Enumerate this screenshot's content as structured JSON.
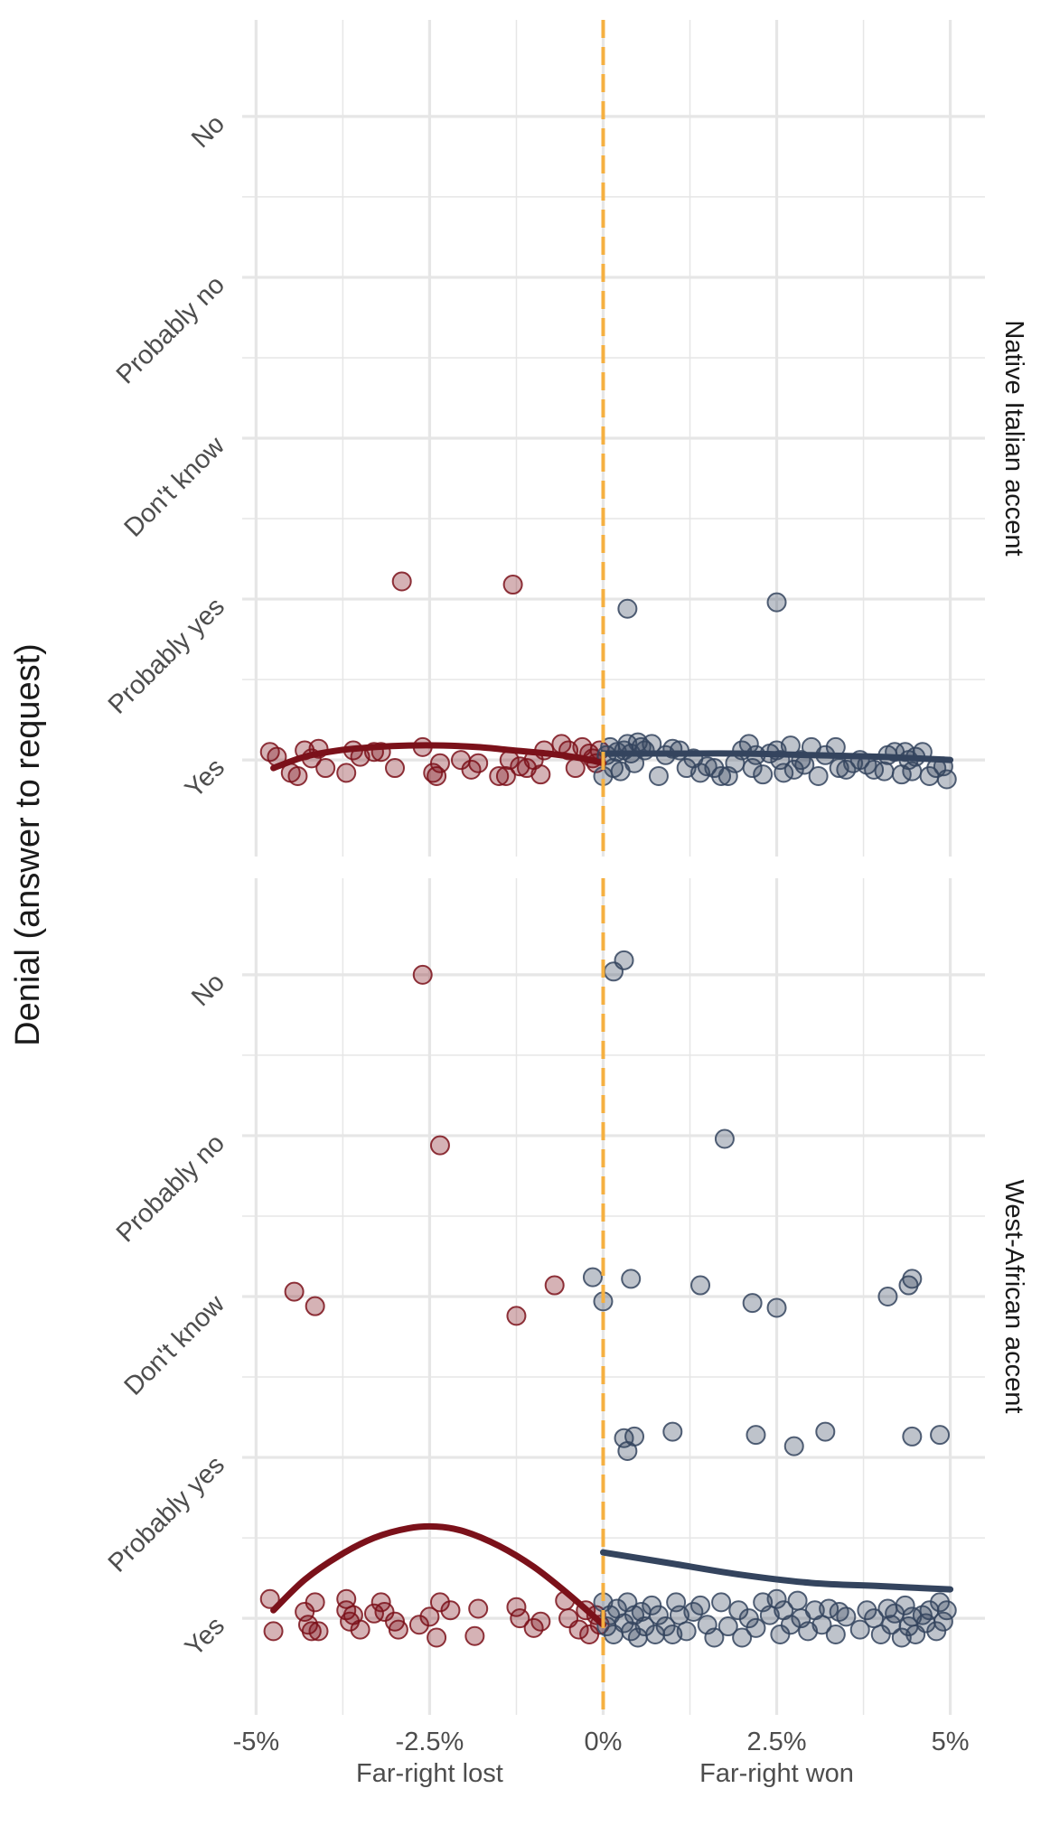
{
  "chart_data": {
    "type": "scatter",
    "ylabel": "Denial (answer to request)",
    "y_categories": [
      "Yes",
      "Probably yes",
      "Don't know",
      "Probably no",
      "No"
    ],
    "x_ticks": [
      -5,
      -2.5,
      0,
      2.5,
      5
    ],
    "x_tick_labels": [
      "-5%",
      "-2.5%",
      "0%",
      "2.5%",
      "5%"
    ],
    "xlim": [
      -5.2,
      5.5
    ],
    "x_sublabels": [
      {
        "x": -2.5,
        "text": "Far-right lost"
      },
      {
        "x": 2.5,
        "text": "Far-right won"
      }
    ],
    "cutoff": {
      "x": 0,
      "color": "#f5b041",
      "style": "dashed"
    },
    "colors": {
      "lost": "#7b111a",
      "won": "#34445e",
      "grid": "#e6e6e6"
    },
    "grid": true,
    "panels": [
      {
        "name": "Native Italian accent",
        "fits": [
          {
            "side": "lost",
            "points": [
              [
                -4.75,
                -0.05
              ],
              [
                -4.3,
                0.02
              ],
              [
                -3.8,
                0.06
              ],
              [
                -3.3,
                0.08
              ],
              [
                -2.8,
                0.09
              ],
              [
                -2.3,
                0.09
              ],
              [
                -1.8,
                0.08
              ],
              [
                -1.3,
                0.06
              ],
              [
                -0.8,
                0.04
              ],
              [
                -0.3,
                0.01
              ],
              [
                0,
                -0.02
              ]
            ]
          },
          {
            "side": "won",
            "points": [
              [
                0,
                0.04
              ],
              [
                1,
                0.04
              ],
              [
                2,
                0.04
              ],
              [
                3,
                0.03
              ],
              [
                4,
                0.02
              ],
              [
                5,
                0.0
              ]
            ]
          }
        ],
        "points_lost": [
          [
            -4.8,
            0.05
          ],
          [
            -4.7,
            0.02
          ],
          [
            -4.5,
            -0.08
          ],
          [
            -4.4,
            -0.1
          ],
          [
            -4.3,
            0.06
          ],
          [
            -4.2,
            0.01
          ],
          [
            -4.1,
            0.07
          ],
          [
            -4.0,
            -0.05
          ],
          [
            -3.7,
            -0.08
          ],
          [
            -3.6,
            0.06
          ],
          [
            -3.5,
            0.02
          ],
          [
            -3.3,
            0.05
          ],
          [
            -3.2,
            0.05
          ],
          [
            -3.0,
            -0.05
          ],
          [
            -2.6,
            0.08
          ],
          [
            -2.45,
            -0.08
          ],
          [
            -2.4,
            -0.1
          ],
          [
            -2.35,
            -0.02
          ],
          [
            -2.05,
            0.0
          ],
          [
            -1.9,
            -0.06
          ],
          [
            -1.8,
            -0.02
          ],
          [
            -1.5,
            -0.1
          ],
          [
            -1.4,
            -0.1
          ],
          [
            -1.35,
            0.0
          ],
          [
            -1.2,
            -0.04
          ],
          [
            -1.1,
            -0.05
          ],
          [
            -1.0,
            0.0
          ],
          [
            -0.9,
            -0.09
          ],
          [
            -0.85,
            0.06
          ],
          [
            -0.6,
            0.1
          ],
          [
            -0.5,
            0.06
          ],
          [
            -0.4,
            -0.05
          ],
          [
            -0.3,
            0.08
          ],
          [
            -0.2,
            0.04
          ],
          [
            -0.15,
            0.01
          ],
          [
            -0.1,
            -0.02
          ],
          [
            -0.05,
            0.06
          ],
          [
            -2.9,
            1.11
          ],
          [
            -1.3,
            1.09
          ]
        ],
        "points_won": [
          [
            0.0,
            -0.1
          ],
          [
            0.05,
            0.03
          ],
          [
            0.1,
            0.08
          ],
          [
            0.15,
            -0.05
          ],
          [
            0.2,
            0.05
          ],
          [
            0.25,
            -0.07
          ],
          [
            0.3,
            0.06
          ],
          [
            0.35,
            0.1
          ],
          [
            0.4,
            0.04
          ],
          [
            0.45,
            -0.02
          ],
          [
            0.5,
            0.11
          ],
          [
            0.55,
            0.08
          ],
          [
            0.6,
            0.06
          ],
          [
            0.7,
            0.1
          ],
          [
            0.8,
            -0.1
          ],
          [
            0.9,
            0.03
          ],
          [
            1.0,
            0.07
          ],
          [
            1.1,
            0.06
          ],
          [
            1.2,
            -0.05
          ],
          [
            1.3,
            0.01
          ],
          [
            1.4,
            -0.08
          ],
          [
            1.5,
            -0.04
          ],
          [
            1.6,
            -0.05
          ],
          [
            1.7,
            -0.1
          ],
          [
            1.8,
            -0.1
          ],
          [
            1.9,
            -0.02
          ],
          [
            2.0,
            0.06
          ],
          [
            2.1,
            0.1
          ],
          [
            2.15,
            -0.05
          ],
          [
            2.2,
            0.03
          ],
          [
            2.3,
            -0.09
          ],
          [
            2.4,
            0.04
          ],
          [
            2.5,
            0.06
          ],
          [
            2.55,
            0.0
          ],
          [
            2.6,
            -0.08
          ],
          [
            2.7,
            0.09
          ],
          [
            2.75,
            -0.06
          ],
          [
            2.85,
            0.0
          ],
          [
            2.9,
            -0.03
          ],
          [
            3.0,
            0.08
          ],
          [
            3.1,
            -0.1
          ],
          [
            3.2,
            0.03
          ],
          [
            3.35,
            0.08
          ],
          [
            3.4,
            -0.05
          ],
          [
            3.5,
            -0.06
          ],
          [
            3.6,
            -0.02
          ],
          [
            3.7,
            0.0
          ],
          [
            3.8,
            -0.03
          ],
          [
            3.9,
            -0.06
          ],
          [
            4.05,
            -0.07
          ],
          [
            4.1,
            0.03
          ],
          [
            4.2,
            0.05
          ],
          [
            4.3,
            -0.09
          ],
          [
            4.35,
            0.05
          ],
          [
            4.4,
            0.0
          ],
          [
            4.45,
            -0.07
          ],
          [
            4.5,
            0.02
          ],
          [
            4.6,
            0.05
          ],
          [
            4.7,
            -0.1
          ],
          [
            4.8,
            -0.05
          ],
          [
            4.9,
            -0.04
          ],
          [
            4.95,
            -0.12
          ],
          [
            0.35,
            0.94
          ],
          [
            2.5,
            0.98
          ]
        ]
      },
      {
        "name": "West-African accent",
        "fits": [
          {
            "side": "lost",
            "points": [
              [
                -4.75,
                0.05
              ],
              [
                -4.3,
                0.24
              ],
              [
                -3.8,
                0.39
              ],
              [
                -3.3,
                0.5
              ],
              [
                -2.8,
                0.56
              ],
              [
                -2.4,
                0.57
              ],
              [
                -2.0,
                0.54
              ],
              [
                -1.5,
                0.45
              ],
              [
                -1.0,
                0.32
              ],
              [
                -0.5,
                0.15
              ],
              [
                0,
                -0.04
              ]
            ]
          },
          {
            "side": "won",
            "points": [
              [
                0,
                0.41
              ],
              [
                1,
                0.34
              ],
              [
                2,
                0.27
              ],
              [
                3,
                0.22
              ],
              [
                4,
                0.2
              ],
              [
                5,
                0.18
              ]
            ]
          }
        ],
        "points_lost": [
          [
            -4.8,
            0.12
          ],
          [
            -4.75,
            -0.08
          ],
          [
            -4.3,
            0.04
          ],
          [
            -4.25,
            -0.04
          ],
          [
            -4.2,
            -0.08
          ],
          [
            -4.15,
            0.1
          ],
          [
            -4.1,
            -0.08
          ],
          [
            -3.7,
            0.12
          ],
          [
            -3.7,
            0.05
          ],
          [
            -3.65,
            -0.02
          ],
          [
            -3.6,
            0.02
          ],
          [
            -3.5,
            -0.07
          ],
          [
            -3.3,
            0.03
          ],
          [
            -3.2,
            0.1
          ],
          [
            -3.15,
            0.04
          ],
          [
            -3.0,
            -0.02
          ],
          [
            -2.95,
            -0.07
          ],
          [
            -2.65,
            -0.04
          ],
          [
            -2.5,
            0.01
          ],
          [
            -2.4,
            -0.12
          ],
          [
            -2.35,
            0.1
          ],
          [
            -2.2,
            0.05
          ],
          [
            -1.8,
            0.06
          ],
          [
            -1.85,
            -0.11
          ],
          [
            -1.25,
            0.07
          ],
          [
            -1.2,
            0.0
          ],
          [
            -1.0,
            -0.06
          ],
          [
            -0.9,
            -0.02
          ],
          [
            -0.55,
            0.11
          ],
          [
            -0.5,
            0.0
          ],
          [
            -0.35,
            -0.07
          ],
          [
            -0.25,
            0.05
          ],
          [
            -0.2,
            -0.1
          ],
          [
            -0.1,
            0.02
          ],
          [
            -0.05,
            -0.04
          ],
          [
            -2.6,
            4.0
          ],
          [
            -2.35,
            2.94
          ],
          [
            -4.45,
            2.03
          ],
          [
            -4.15,
            1.94
          ],
          [
            -1.25,
            1.88
          ],
          [
            -0.7,
            2.07
          ]
        ],
        "points_won": [
          [
            0.0,
            0.1
          ],
          [
            0.05,
            -0.05
          ],
          [
            0.1,
            0.02
          ],
          [
            0.15,
            -0.1
          ],
          [
            0.2,
            0.06
          ],
          [
            0.3,
            -0.03
          ],
          [
            0.35,
            0.1
          ],
          [
            0.4,
            -0.08
          ],
          [
            0.45,
            0.02
          ],
          [
            0.5,
            -0.12
          ],
          [
            0.55,
            0.04
          ],
          [
            0.6,
            -0.05
          ],
          [
            0.7,
            0.08
          ],
          [
            0.75,
            -0.1
          ],
          [
            0.8,
            0.02
          ],
          [
            0.9,
            -0.05
          ],
          [
            1.0,
            -0.1
          ],
          [
            1.05,
            0.1
          ],
          [
            1.1,
            0.02
          ],
          [
            1.2,
            -0.08
          ],
          [
            1.3,
            0.04
          ],
          [
            1.4,
            0.08
          ],
          [
            1.5,
            -0.04
          ],
          [
            1.6,
            -0.12
          ],
          [
            1.7,
            0.1
          ],
          [
            1.8,
            -0.05
          ],
          [
            1.95,
            0.05
          ],
          [
            2.0,
            -0.12
          ],
          [
            2.1,
            0.0
          ],
          [
            2.2,
            -0.06
          ],
          [
            2.3,
            0.1
          ],
          [
            2.4,
            0.02
          ],
          [
            2.5,
            0.12
          ],
          [
            2.55,
            -0.1
          ],
          [
            2.6,
            0.05
          ],
          [
            2.7,
            -0.04
          ],
          [
            2.8,
            0.11
          ],
          [
            2.85,
            0.0
          ],
          [
            2.95,
            -0.08
          ],
          [
            3.05,
            0.05
          ],
          [
            3.15,
            -0.04
          ],
          [
            3.25,
            0.06
          ],
          [
            3.35,
            -0.1
          ],
          [
            3.4,
            0.04
          ],
          [
            3.5,
            0.01
          ],
          [
            3.7,
            -0.07
          ],
          [
            3.8,
            0.05
          ],
          [
            3.9,
            0.0
          ],
          [
            4.0,
            -0.1
          ],
          [
            4.1,
            0.06
          ],
          [
            4.15,
            -0.04
          ],
          [
            4.2,
            0.03
          ],
          [
            4.3,
            -0.12
          ],
          [
            4.35,
            0.08
          ],
          [
            4.4,
            -0.05
          ],
          [
            4.45,
            0.01
          ],
          [
            4.5,
            -0.1
          ],
          [
            4.6,
            0.02
          ],
          [
            4.65,
            -0.03
          ],
          [
            4.7,
            0.05
          ],
          [
            4.8,
            -0.08
          ],
          [
            4.85,
            0.1
          ],
          [
            4.9,
            -0.02
          ],
          [
            4.95,
            0.05
          ],
          [
            0.15,
            4.02
          ],
          [
            0.3,
            4.09
          ],
          [
            1.75,
            2.98
          ],
          [
            -0.15,
            2.12
          ],
          [
            0.0,
            1.97
          ],
          [
            0.4,
            2.11
          ],
          [
            1.4,
            2.07
          ],
          [
            2.15,
            1.96
          ],
          [
            2.5,
            1.93
          ],
          [
            4.1,
            2.0
          ],
          [
            4.4,
            2.07
          ],
          [
            4.45,
            2.11
          ],
          [
            0.3,
            1.12
          ],
          [
            0.35,
            1.04
          ],
          [
            0.45,
            1.13
          ],
          [
            1.0,
            1.16
          ],
          [
            2.2,
            1.14
          ],
          [
            2.75,
            1.07
          ],
          [
            3.2,
            1.16
          ],
          [
            4.45,
            1.13
          ],
          [
            4.85,
            1.14
          ]
        ]
      }
    ]
  }
}
